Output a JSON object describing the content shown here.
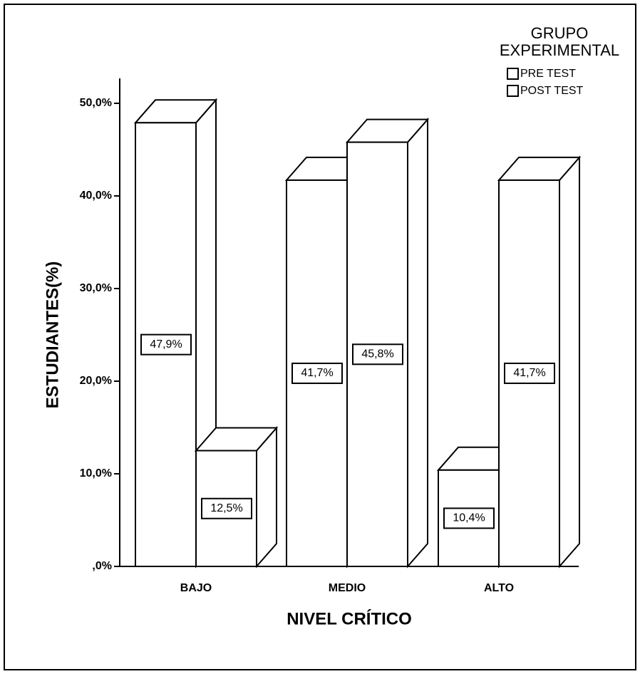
{
  "chart_data": {
    "type": "bar3d",
    "categories": [
      "BAJO",
      "MEDIO",
      "ALTO"
    ],
    "series": [
      {
        "name": "PRE TEST",
        "color": "#ffffff",
        "values": [
          47.9,
          41.7,
          10.4
        ],
        "value_labels": [
          "47,9%",
          "41,7%",
          "10,4%"
        ]
      },
      {
        "name": "POST TEST",
        "color": "#ffffff",
        "values": [
          12.5,
          45.8,
          41.7
        ],
        "value_labels": [
          "12,5%",
          "45,8%",
          "41,7%"
        ]
      }
    ],
    "ylim": [
      0,
      50
    ],
    "yticks": [
      {
        "value": 0,
        "label": ",0%"
      },
      {
        "value": 10,
        "label": "10,0%"
      },
      {
        "value": 20,
        "label": "20,0%"
      },
      {
        "value": 30,
        "label": "30,0%"
      },
      {
        "value": 40,
        "label": "40,0%"
      },
      {
        "value": 50,
        "label": "50,0%"
      }
    ],
    "y_label": "ESTUDIANTES(%)",
    "x_label": "NIVEL CRÍTICO",
    "legend_title": [
      "GRUPO",
      "EXPERIMENTAL"
    ],
    "legend_position": "upper right"
  }
}
